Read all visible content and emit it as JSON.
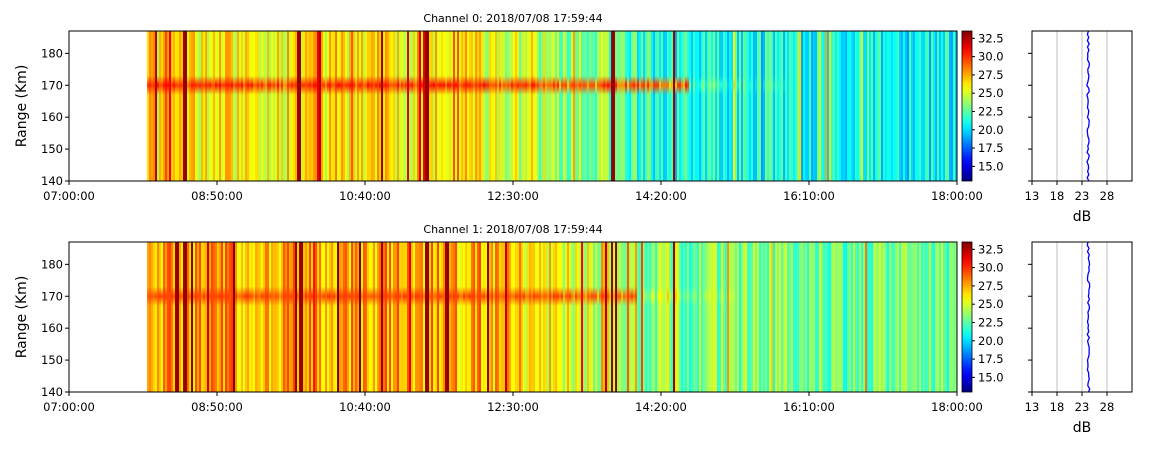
{
  "chart_data": [
    {
      "type": "heatmap",
      "title": "Channel 0: 2018/07/08 17:59:44",
      "xlabel": "",
      "ylabel": "Range (Km)",
      "x_ticks": [
        "07:00:00",
        "08:50:00",
        "10:40:00",
        "12:30:00",
        "14:20:00",
        "16:10:00",
        "18:00:00"
      ],
      "xlim": [
        "07:00:00",
        "18:00:00"
      ],
      "y_ticks": [
        140,
        150,
        160,
        170,
        180
      ],
      "ylim": [
        140,
        187
      ],
      "data_start": "07:58:00",
      "colormap": "jet",
      "colorbar": {
        "ticks": [
          15.0,
          17.5,
          20.0,
          22.5,
          25.0,
          27.5,
          30.0,
          32.5
        ],
        "min": 13.0,
        "max": 33.5
      },
      "bright_band": {
        "range_km": 170,
        "from": "07:58:00",
        "to": "14:40:00",
        "peak_db": 31
      },
      "background_db": {
        "before_12:00": 26,
        "after_14:30": 21
      },
      "strong_vertical_streaks": [
        "08:25:00",
        "09:50:00",
        "10:52:00",
        "11:25:00",
        "13:44:00",
        "14:29:00"
      ],
      "profile": {
        "xlabel": "dB",
        "x_ticks": [
          13,
          18,
          23,
          28
        ],
        "xlim": [
          13,
          33
        ],
        "ylim": [
          140,
          187
        ],
        "grid": true,
        "mean_db": 24.2
      }
    },
    {
      "type": "heatmap",
      "title": "Channel 1: 2018/07/08 17:59:44",
      "xlabel": "",
      "ylabel": "Range (Km)",
      "x_ticks": [
        "07:00:00",
        "08:50:00",
        "10:40:00",
        "12:30:00",
        "14:20:00",
        "16:10:00",
        "18:00:00"
      ],
      "xlim": [
        "07:00:00",
        "18:00:00"
      ],
      "y_ticks": [
        140,
        150,
        160,
        170,
        180
      ],
      "ylim": [
        140,
        187
      ],
      "data_start": "07:58:00",
      "colormap": "jet",
      "colorbar": {
        "ticks": [
          15.0,
          17.5,
          20.0,
          22.5,
          25.0,
          27.5,
          30.0,
          32.5
        ],
        "min": 13.0,
        "max": 33.5
      },
      "bright_band": {
        "range_km": 170,
        "from": "07:58:00",
        "to": "14:00:00",
        "peak_db": 30
      },
      "background_db": {
        "before_12:00": 27.5,
        "after_14:30": 23
      },
      "strong_vertical_streaks": [
        "08:20:00",
        "08:25:00",
        "09:48:00",
        "09:52:00",
        "10:52:00",
        "11:25:00",
        "11:40:00",
        "13:43:00",
        "13:46:00",
        "14:29:00"
      ],
      "profile": {
        "xlabel": "dB",
        "x_ticks": [
          13,
          18,
          23,
          28
        ],
        "xlim": [
          13,
          33
        ],
        "ylim": [
          140,
          187
        ],
        "grid": true,
        "mean_db": 24.3
      }
    }
  ]
}
